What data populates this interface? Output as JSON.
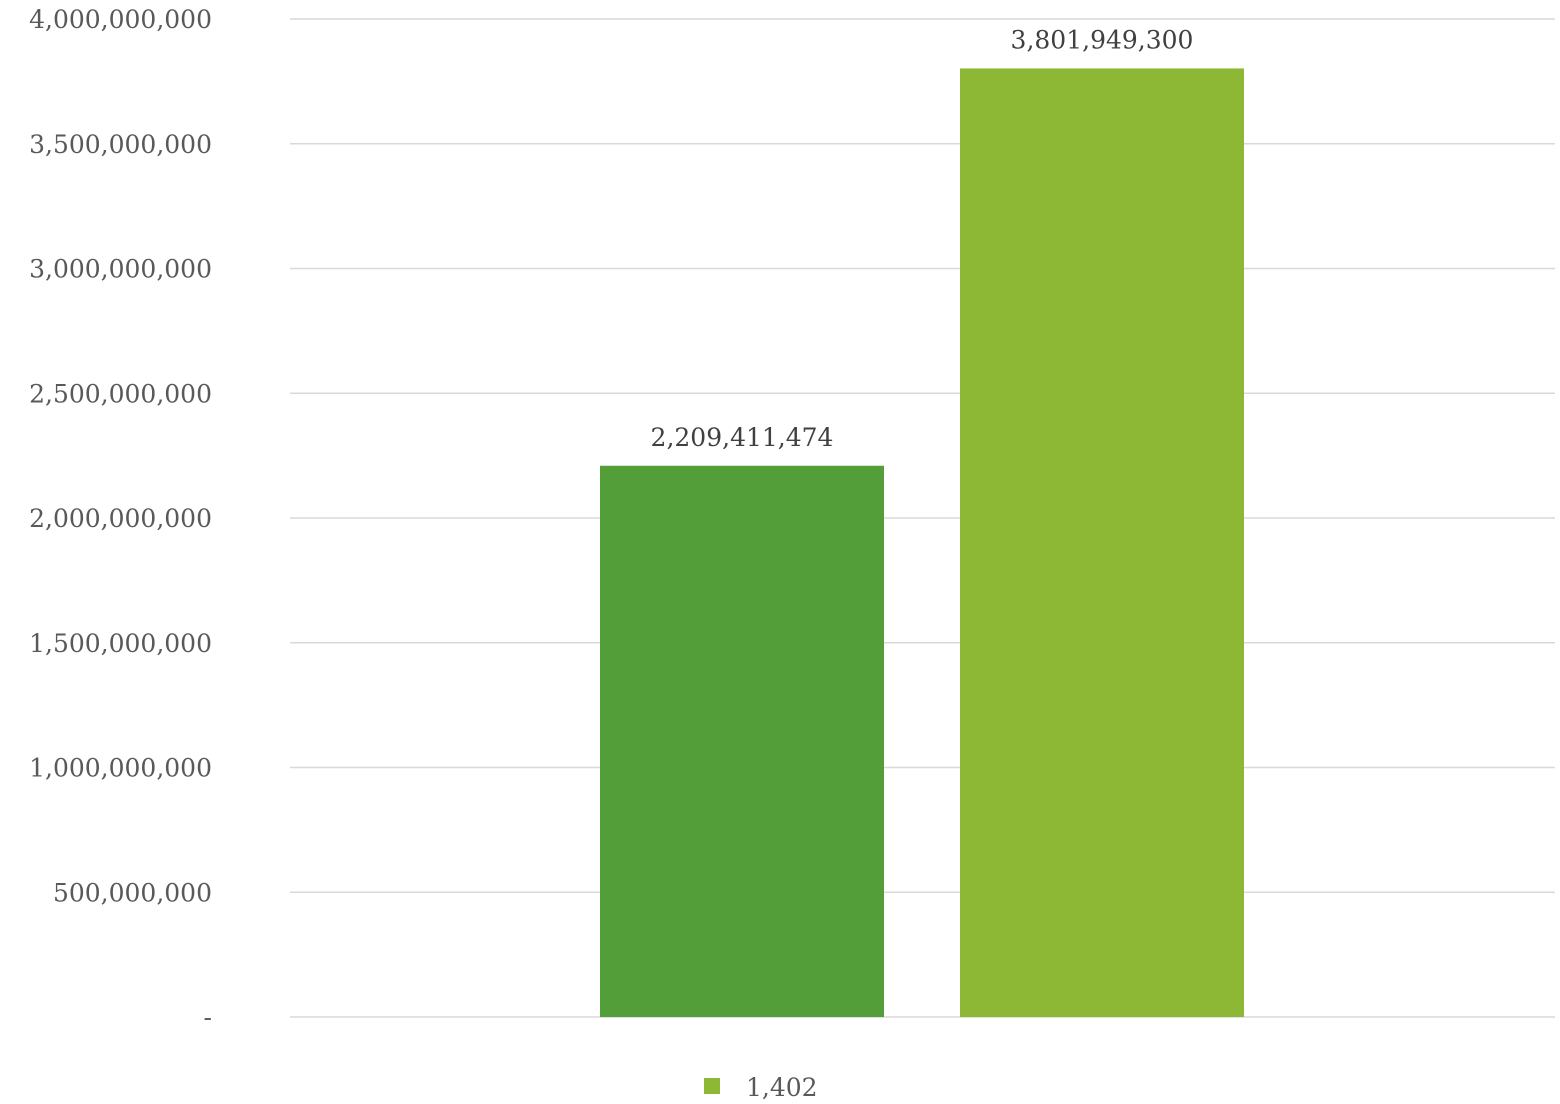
{
  "chart_data": {
    "type": "bar",
    "categories": [
      "",
      ""
    ],
    "series": [
      {
        "name": "1,402",
        "values": [
          2209411474,
          3801949300
        ],
        "data_labels": [
          "2,209,411,474",
          "3,801,949,300"
        ],
        "colors": [
          "#539E38",
          "#8DB836"
        ]
      }
    ],
    "title": "",
    "xlabel": "",
    "ylabel": "",
    "ylim": [
      0,
      4000000000
    ],
    "y_ticks": [
      0,
      500000000,
      1000000000,
      1500000000,
      2000000000,
      2500000000,
      3000000000,
      3500000000,
      4000000000
    ],
    "y_tick_labels": [
      "-",
      "500,000,000",
      "1,000,000,000",
      "1,500,000,000",
      "2,000,000,000",
      "2,500,000,000",
      "3,000,000,000",
      "3,500,000,000",
      "4,000,000,000"
    ],
    "grid": true,
    "legend": {
      "position": "bottom",
      "entries": [
        {
          "label": "1,402",
          "color": "#8DB836"
        }
      ]
    }
  }
}
